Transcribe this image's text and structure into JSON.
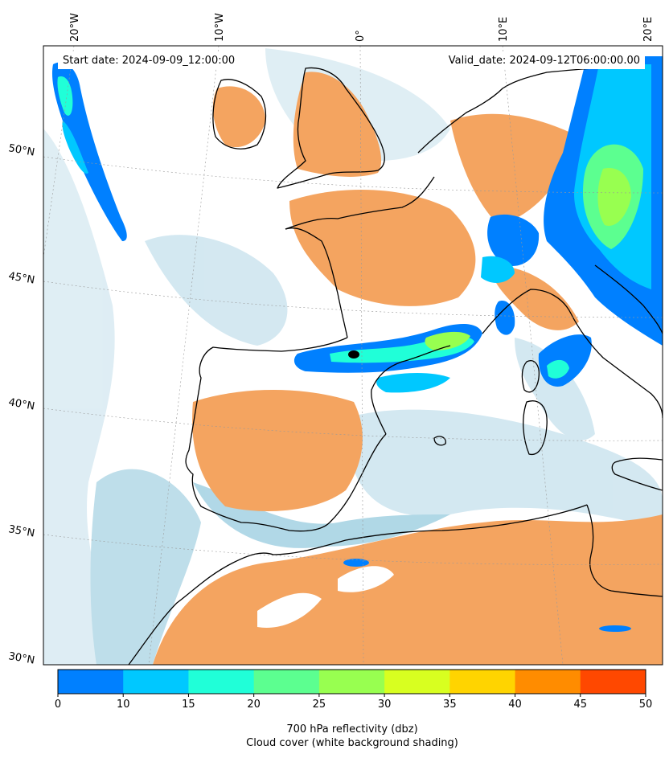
{
  "header": {
    "start_date": "Start date: 2024-09-09_12:00:00",
    "valid_date": "Valid_date: 2024-09-12T06:00:00.00"
  },
  "axes": {
    "lon_ticks": [
      "20°W",
      "10°W",
      "0°",
      "10°E",
      "20°E"
    ],
    "lat_ticks": [
      "50°N",
      "45°N",
      "40°N",
      "35°N",
      "30°N"
    ]
  },
  "colorbar": {
    "ticks": [
      "0",
      "10",
      "15",
      "20",
      "25",
      "30",
      "35",
      "40",
      "45",
      "50"
    ],
    "colors": [
      "#0080ff",
      "#00c8ff",
      "#20ffd8",
      "#5cff90",
      "#98ff50",
      "#d8ff20",
      "#ffd400",
      "#ff8c00",
      "#ff4800"
    ],
    "label_line1": "700 hPa reflectivity (dbz)",
    "label_line2": "Cloud cover (white background shading)"
  },
  "palette": {
    "land_dry": "#f4a460",
    "cloud_light": "#d6eaf2",
    "cloud_mid": "#a8d4e4",
    "coastline": "#000000"
  }
}
